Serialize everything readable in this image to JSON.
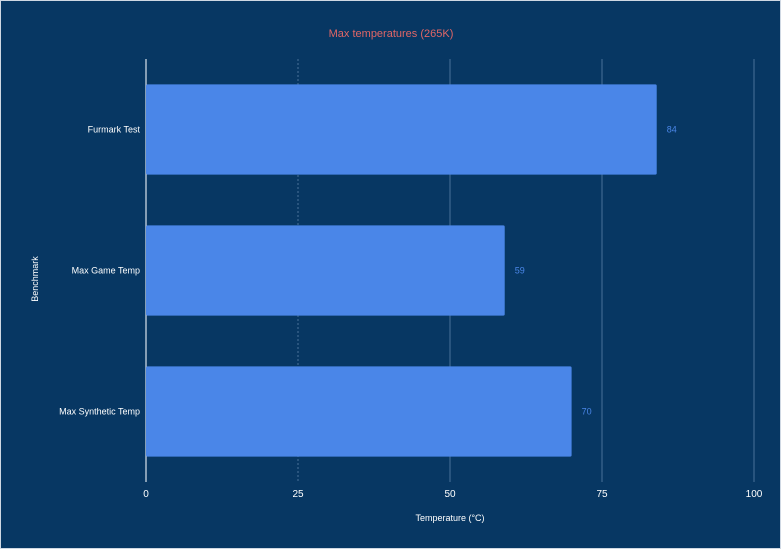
{
  "chart_data": {
    "type": "bar",
    "orientation": "horizontal",
    "title": "Max temperatures (265K)",
    "xlabel": "Temperature (°C)",
    "ylabel": "Benchmark",
    "categories": [
      "Furmark Test",
      "Max Game Temp",
      "Max Synthetic Temp"
    ],
    "values": [
      84,
      59,
      70
    ],
    "xlim": [
      0,
      100
    ],
    "xticks": [
      0,
      25,
      50,
      75,
      100
    ],
    "grid": true,
    "legend": "none",
    "colors": {
      "background": "#073763",
      "bar": "#4a86e8",
      "title": "#e06666",
      "data_label": "#4a86e8",
      "gridline": "#5b7fa6"
    }
  }
}
